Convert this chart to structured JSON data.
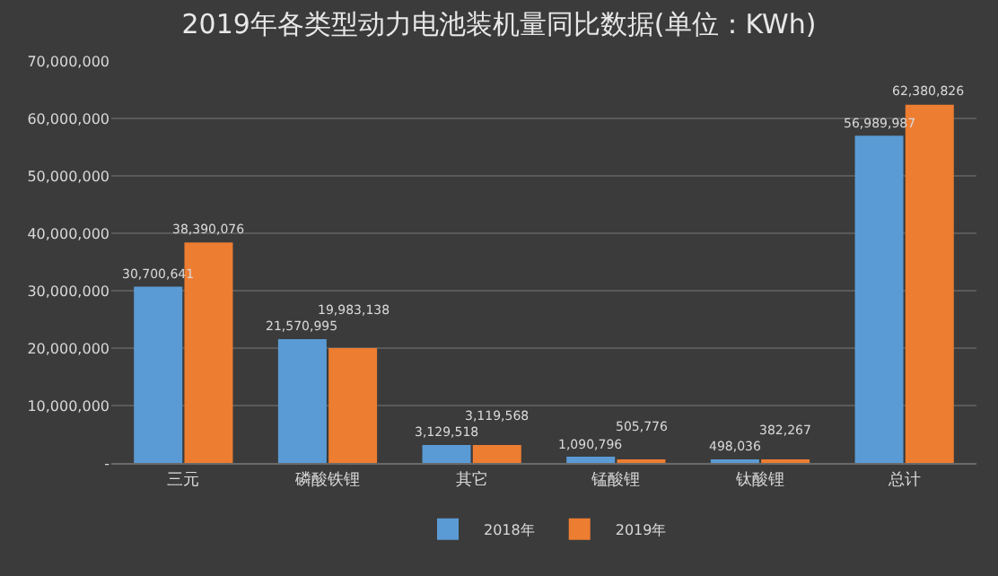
{
  "chart_data": {
    "type": "bar",
    "title": "2019年各类型动力电池装机量同比数据(单位：KWh)",
    "categories": [
      "三元",
      "磷酸铁锂",
      "其它",
      "锰酸锂",
      "钛酸锂",
      "总计"
    ],
    "series": [
      {
        "name": "2018年",
        "color": "#5b9bd5",
        "values": [
          30700641,
          21570995,
          3129518,
          1090796,
          498036,
          56989987
        ],
        "value_labels": [
          "30,700,641",
          "21,570,995",
          "3,129,518",
          "1,090,796",
          "498,036",
          "56,989,987"
        ]
      },
      {
        "name": "2019年",
        "color": "#ed7d31",
        "values": [
          38390076,
          19983138,
          3119568,
          505776,
          382267,
          62380826
        ],
        "value_labels": [
          "38,390,076",
          "19,983,138",
          "3,119,568",
          "505,776",
          "382,267",
          "62,380,826"
        ]
      }
    ],
    "ylim": [
      0,
      70000000
    ],
    "yticks": [
      {
        "value": 0,
        "label": "-"
      },
      {
        "value": 10000000,
        "label": "10,000,000"
      },
      {
        "value": 20000000,
        "label": "20,000,000"
      },
      {
        "value": 30000000,
        "label": "30,000,000"
      },
      {
        "value": 40000000,
        "label": "40,000,000"
      },
      {
        "value": 50000000,
        "label": "50,000,000"
      },
      {
        "value": 60000000,
        "label": "60,000,000"
      },
      {
        "value": 70000000,
        "label": "70,000,000"
      }
    ],
    "grid": "y",
    "legend": "bottom",
    "data_labels": true
  }
}
